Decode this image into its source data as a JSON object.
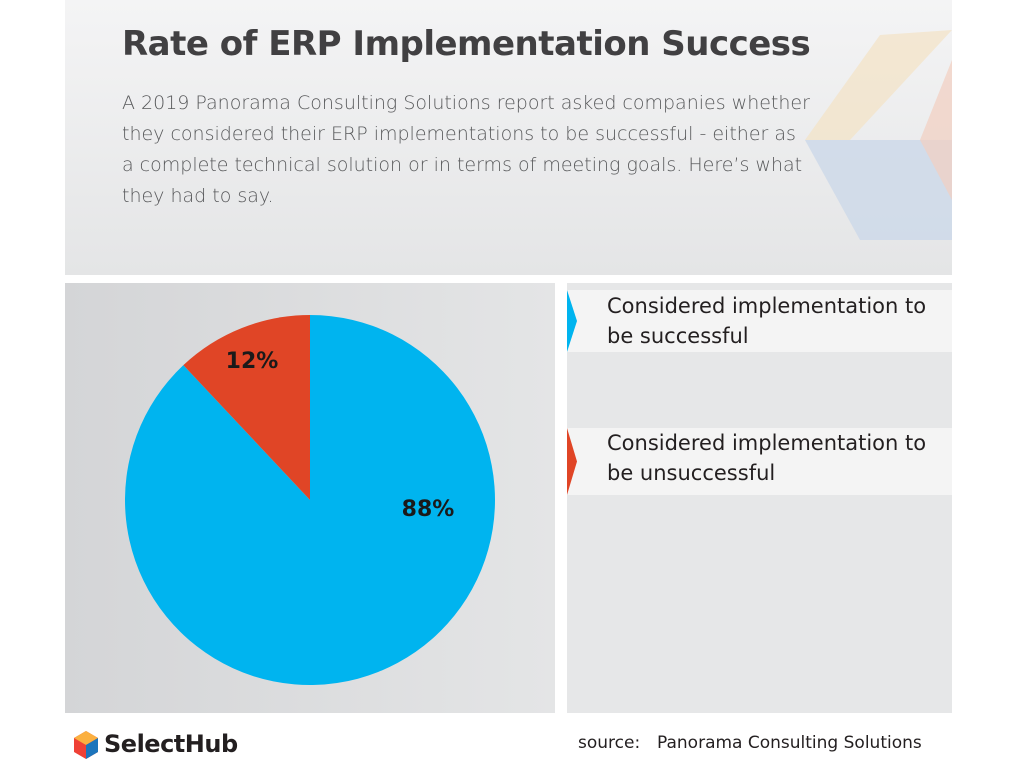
{
  "chart_data": {
    "type": "pie",
    "title": "Rate of ERP Implementation Success",
    "subtitle": "A 2019 Panorama Consulting Solutions report asked companies whether they considered their ERP implementations to be successful - either as a complete technical solution or in terms of meeting goals. Here’s what they had to say.",
    "categories": [
      "Considered implementation to be successful",
      "Considered implementation to be unsuccessful"
    ],
    "values": [
      88,
      12
    ],
    "value_labels": [
      "88%",
      "12%"
    ],
    "colors": [
      "#00b4ef",
      "#e04526"
    ],
    "brand": "SelectHub",
    "source_label": "source:",
    "source": "Panorama Consulting Solutions"
  }
}
